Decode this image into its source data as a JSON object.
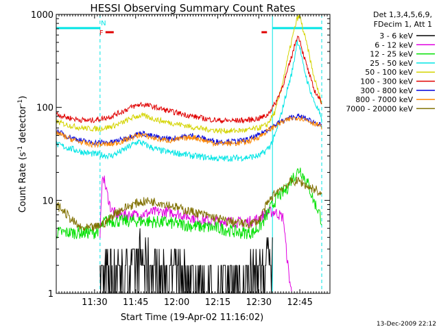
{
  "chart_data": {
    "type": "line",
    "title": "HESSI Observing Summary Count Rates",
    "xlabel": "Start Time (19-Apr-02 11:16:02)",
    "ylabel_main": "Count Rate (s",
    "ylabel_sup1": "-1",
    "ylabel_mid": " detector",
    "ylabel_sup2": "-1",
    "ylabel_end": ")",
    "footer": "13-Dec-2009 22:12",
    "x_start": "11:16",
    "x_end": "12:56",
    "xlim_minutes": [
      0,
      100
    ],
    "ylim": [
      1,
      1000
    ],
    "y_scale": "log",
    "x_ticks": [
      {
        "label": "11:30",
        "t": 14
      },
      {
        "label": "11:45",
        "t": 29
      },
      {
        "label": "12:00",
        "t": 44
      },
      {
        "label": "12:15",
        "t": 59
      },
      {
        "label": "12:30",
        "t": 74
      },
      {
        "label": "12:45",
        "t": 89
      }
    ],
    "y_ticks": [
      {
        "label": "1",
        "v": 1
      },
      {
        "label": "10",
        "v": 10
      },
      {
        "label": "100",
        "v": 100
      },
      {
        "label": "1000",
        "v": 1000
      }
    ],
    "legend_header": [
      "Det 1,3,4,5,6,9,",
      "FDecim 1, Att 1"
    ],
    "legend_placement": "right",
    "flags": {
      "night_color": "#00e5e5",
      "saa_color": "#e00000",
      "night_label": "N",
      "flare_label": "F",
      "night_intervals": [
        [
          0,
          16
        ],
        [
          79,
          97
        ]
      ],
      "saa_intervals": [
        [
          18,
          21
        ],
        [
          75,
          77
        ]
      ],
      "night_boundaries": [
        16,
        79,
        97
      ]
    },
    "series": [
      {
        "name": "3 - 6 keV",
        "color": "#000000",
        "points": [
          [
            16,
            1.3
          ],
          [
            20,
            1.8
          ],
          [
            25,
            1.6
          ],
          [
            30,
            2.2
          ],
          [
            35,
            1.7
          ],
          [
            40,
            1.5
          ],
          [
            45,
            1.4
          ],
          [
            50,
            1.3
          ],
          [
            55,
            1.2
          ],
          [
            59,
            1.2
          ],
          [
            62,
            1.1
          ],
          [
            75,
            1.6
          ],
          [
            78,
            2.5
          ],
          [
            79,
            2.6
          ]
        ]
      },
      {
        "name": "6 - 12 keV",
        "color": "#e000e0",
        "points": [
          [
            16,
            4.5
          ],
          [
            17,
            20
          ],
          [
            18,
            14
          ],
          [
            20,
            8
          ],
          [
            22,
            7
          ],
          [
            26,
            7
          ],
          [
            30,
            7
          ],
          [
            36,
            7.5
          ],
          [
            42,
            7.5
          ],
          [
            50,
            6.5
          ],
          [
            56,
            6
          ],
          [
            62,
            6
          ],
          [
            67,
            5.8
          ],
          [
            72,
            6
          ],
          [
            76,
            7
          ],
          [
            78,
            7.5
          ],
          [
            80,
            7.5
          ],
          [
            83,
            6.5
          ],
          [
            84,
            3
          ],
          [
            85,
            1.6
          ],
          [
            86,
            1
          ]
        ]
      },
      {
        "name": "12 - 25 keV",
        "color": "#00e000",
        "points": [
          [
            0,
            4.5
          ],
          [
            5,
            4.5
          ],
          [
            10,
            4.5
          ],
          [
            14,
            4.5
          ],
          [
            16,
            5
          ],
          [
            18,
            6
          ],
          [
            22,
            6
          ],
          [
            30,
            6
          ],
          [
            40,
            5.8
          ],
          [
            50,
            5.3
          ],
          [
            60,
            5
          ],
          [
            67,
            4.5
          ],
          [
            72,
            4.5
          ],
          [
            75,
            5.5
          ],
          [
            77,
            7
          ],
          [
            79,
            9
          ],
          [
            81,
            11
          ],
          [
            84,
            13
          ],
          [
            86,
            17
          ],
          [
            88,
            20
          ],
          [
            89,
            22
          ],
          [
            90,
            19
          ],
          [
            92,
            15
          ],
          [
            94,
            10
          ],
          [
            96,
            7.5
          ],
          [
            97,
            6
          ]
        ]
      },
      {
        "name": "25 - 50 keV",
        "color": "#00e5e5",
        "points": [
          [
            0,
            40
          ],
          [
            4,
            37
          ],
          [
            8,
            34
          ],
          [
            12,
            32
          ],
          [
            16,
            31
          ],
          [
            20,
            30
          ],
          [
            24,
            34
          ],
          [
            28,
            40
          ],
          [
            30,
            43
          ],
          [
            33,
            39
          ],
          [
            37,
            35
          ],
          [
            41,
            33
          ],
          [
            45,
            32
          ],
          [
            50,
            30
          ],
          [
            55,
            29
          ],
          [
            60,
            28
          ],
          [
            65,
            28.5
          ],
          [
            70,
            29
          ],
          [
            74,
            30
          ],
          [
            76,
            33
          ],
          [
            78,
            38
          ],
          [
            80,
            50
          ],
          [
            82,
            80
          ],
          [
            84,
            140
          ],
          [
            86,
            230
          ],
          [
            87,
            330
          ],
          [
            88,
            520
          ],
          [
            89,
            450
          ],
          [
            90,
            300
          ],
          [
            92,
            180
          ],
          [
            94,
            120
          ],
          [
            96,
            90
          ],
          [
            97,
            70
          ]
        ]
      },
      {
        "name": "50 - 100 keV",
        "color": "#d4d400",
        "points": [
          [
            0,
            70
          ],
          [
            4,
            65
          ],
          [
            8,
            61
          ],
          [
            12,
            59
          ],
          [
            16,
            59
          ],
          [
            20,
            62
          ],
          [
            24,
            68
          ],
          [
            28,
            78
          ],
          [
            31,
            82
          ],
          [
            34,
            78
          ],
          [
            38,
            72
          ],
          [
            42,
            68
          ],
          [
            46,
            65
          ],
          [
            50,
            61
          ],
          [
            55,
            58
          ],
          [
            60,
            56
          ],
          [
            65,
            56
          ],
          [
            70,
            57
          ],
          [
            74,
            60
          ],
          [
            77,
            65
          ],
          [
            80,
            90
          ],
          [
            82,
            150
          ],
          [
            84,
            280
          ],
          [
            86,
            520
          ],
          [
            88,
            900
          ],
          [
            89,
            960
          ],
          [
            90,
            720
          ],
          [
            92,
            420
          ],
          [
            94,
            220
          ],
          [
            96,
            140
          ],
          [
            97,
            110
          ]
        ]
      },
      {
        "name": "100 - 300 keV",
        "color": "#e00000",
        "points": [
          [
            0,
            85
          ],
          [
            4,
            78
          ],
          [
            8,
            74
          ],
          [
            12,
            72
          ],
          [
            16,
            75
          ],
          [
            20,
            80
          ],
          [
            24,
            90
          ],
          [
            28,
            102
          ],
          [
            31,
            108
          ],
          [
            34,
            104
          ],
          [
            38,
            97
          ],
          [
            42,
            90
          ],
          [
            46,
            85
          ],
          [
            50,
            80
          ],
          [
            55,
            75
          ],
          [
            60,
            72
          ],
          [
            65,
            72
          ],
          [
            70,
            73
          ],
          [
            74,
            76
          ],
          [
            77,
            82
          ],
          [
            80,
            110
          ],
          [
            82,
            150
          ],
          [
            84,
            220
          ],
          [
            86,
            350
          ],
          [
            88,
            580
          ],
          [
            89,
            540
          ],
          [
            90,
            400
          ],
          [
            92,
            250
          ],
          [
            94,
            160
          ],
          [
            96,
            125
          ],
          [
            97,
            115
          ]
        ]
      },
      {
        "name": "300 - 800 keV",
        "color": "#0000dd",
        "points": [
          [
            0,
            56
          ],
          [
            4,
            49
          ],
          [
            8,
            45
          ],
          [
            12,
            42
          ],
          [
            16,
            42
          ],
          [
            20,
            42
          ],
          [
            24,
            45
          ],
          [
            28,
            50
          ],
          [
            31,
            53
          ],
          [
            34,
            50
          ],
          [
            38,
            47
          ],
          [
            42,
            46
          ],
          [
            46,
            48
          ],
          [
            50,
            50
          ],
          [
            54,
            46
          ],
          [
            58,
            43
          ],
          [
            62,
            43
          ],
          [
            66,
            43
          ],
          [
            70,
            45
          ],
          [
            74,
            50
          ],
          [
            78,
            60
          ],
          [
            82,
            70
          ],
          [
            86,
            78
          ],
          [
            88,
            80
          ],
          [
            90,
            78
          ],
          [
            93,
            72
          ],
          [
            96,
            66
          ],
          [
            97,
            62
          ]
        ]
      },
      {
        "name": "800 - 7000 keV",
        "color": "#ff8800",
        "points": [
          [
            0,
            54
          ],
          [
            4,
            47
          ],
          [
            8,
            43
          ],
          [
            12,
            40
          ],
          [
            16,
            40
          ],
          [
            20,
            40
          ],
          [
            24,
            43
          ],
          [
            28,
            48
          ],
          [
            31,
            51
          ],
          [
            34,
            48
          ],
          [
            38,
            45
          ],
          [
            42,
            44
          ],
          [
            46,
            46
          ],
          [
            50,
            48
          ],
          [
            54,
            44
          ],
          [
            58,
            41
          ],
          [
            62,
            41
          ],
          [
            66,
            41
          ],
          [
            70,
            43
          ],
          [
            74,
            48
          ],
          [
            78,
            58
          ],
          [
            82,
            68
          ],
          [
            86,
            76
          ],
          [
            88,
            78
          ],
          [
            90,
            76
          ],
          [
            93,
            70
          ],
          [
            96,
            64
          ],
          [
            97,
            60
          ]
        ]
      },
      {
        "name": "7000 - 20000 keV",
        "color": "#807000",
        "points": [
          [
            0,
            9
          ],
          [
            3,
            7.5
          ],
          [
            6,
            6
          ],
          [
            9,
            5
          ],
          [
            12,
            5
          ],
          [
            15,
            5.2
          ],
          [
            18,
            5.8
          ],
          [
            22,
            7.5
          ],
          [
            26,
            8.5
          ],
          [
            30,
            9.5
          ],
          [
            34,
            9.8
          ],
          [
            38,
            9.5
          ],
          [
            42,
            8.8
          ],
          [
            46,
            8
          ],
          [
            50,
            7.5
          ],
          [
            54,
            7
          ],
          [
            58,
            6.5
          ],
          [
            62,
            6
          ],
          [
            66,
            5.8
          ],
          [
            70,
            5.5
          ],
          [
            74,
            6
          ],
          [
            76,
            8
          ],
          [
            78,
            10
          ],
          [
            80,
            12
          ],
          [
            83,
            14
          ],
          [
            86,
            16
          ],
          [
            89,
            16
          ],
          [
            92,
            14
          ],
          [
            95,
            13
          ],
          [
            97,
            11
          ]
        ]
      }
    ]
  }
}
